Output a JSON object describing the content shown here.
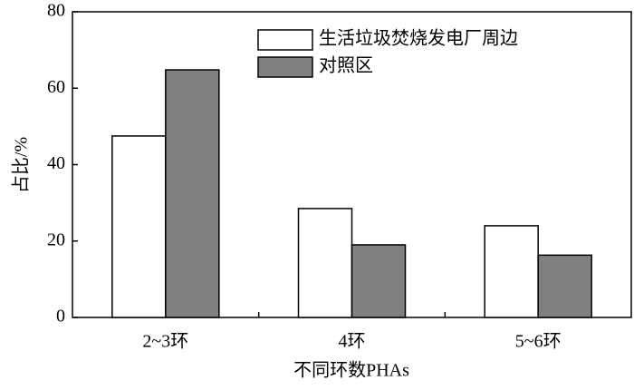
{
  "chart_data": {
    "type": "bar",
    "xlabel": "不同环数PHAs",
    "ylabel": "占比/%",
    "categories": [
      "2~3环",
      "4环",
      "5~6环"
    ],
    "series": [
      {
        "name": "生活垃圾焚烧发电厂周边",
        "color": "#ffffff",
        "values": [
          47.5,
          28.5,
          24.0
        ]
      },
      {
        "name": "对照区",
        "color": "#808080",
        "values": [
          64.8,
          19.0,
          16.3
        ]
      }
    ],
    "ylim": [
      0,
      80
    ],
    "yticks": [
      0,
      20,
      40,
      60,
      80
    ]
  }
}
